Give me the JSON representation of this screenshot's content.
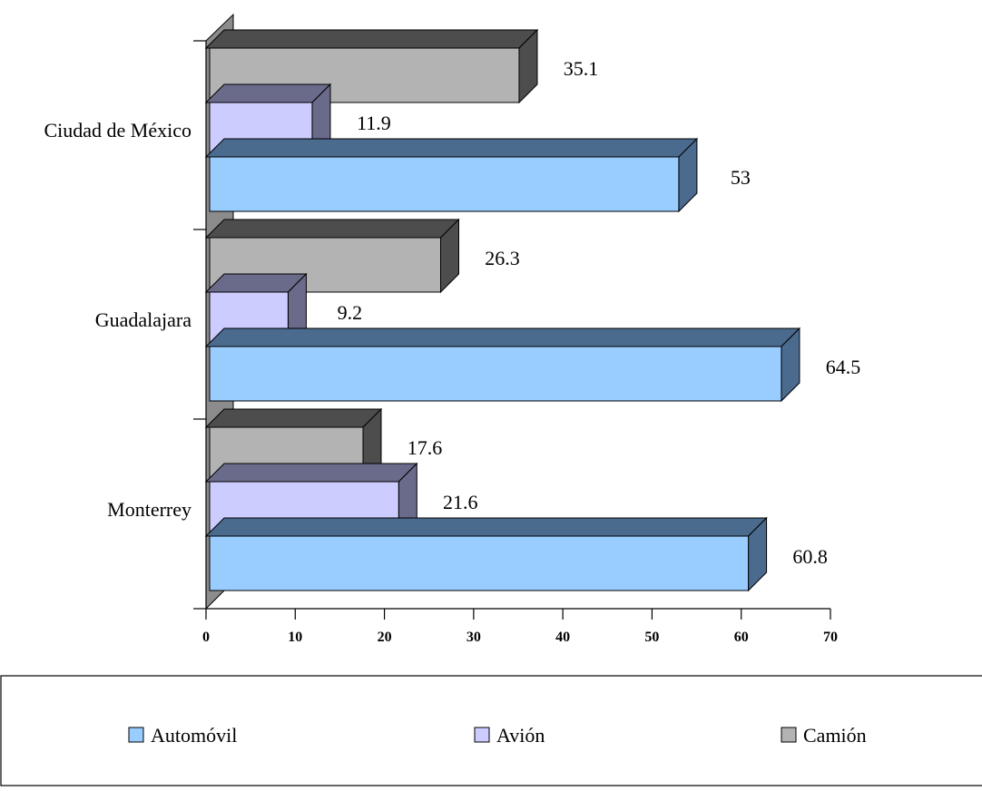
{
  "chart_data": {
    "type": "bar",
    "orientation": "horizontal",
    "style": "3d",
    "categories": [
      "Ciudad de México",
      "Guadalajara",
      "Monterrey"
    ],
    "series": [
      {
        "name": "Automóvil",
        "values": [
          53,
          64.5,
          60.8
        ],
        "color": "#99CCFF",
        "side_color": "#4A6A8E"
      },
      {
        "name": "Avión",
        "values": [
          11.9,
          9.2,
          21.6
        ],
        "color": "#CCCCFF",
        "side_color": "#6A6A8A"
      },
      {
        "name": "Camión",
        "values": [
          35.1,
          26.3,
          17.6
        ],
        "color": "#B3B3B3",
        "side_color": "#4D4D4D"
      }
    ],
    "data_labels": [
      [
        "53",
        "64.5",
        "60.8"
      ],
      [
        "11.9",
        "9.2",
        "21.6"
      ],
      [
        "35.1",
        "26.3",
        "17.6"
      ]
    ],
    "xlim": [
      0,
      70
    ],
    "xticks": [
      "0",
      "10",
      "20",
      "30",
      "40",
      "50",
      "60",
      "70"
    ],
    "grid": false,
    "legend_position": "bottom",
    "title": "",
    "xlabel": "",
    "ylabel": ""
  }
}
